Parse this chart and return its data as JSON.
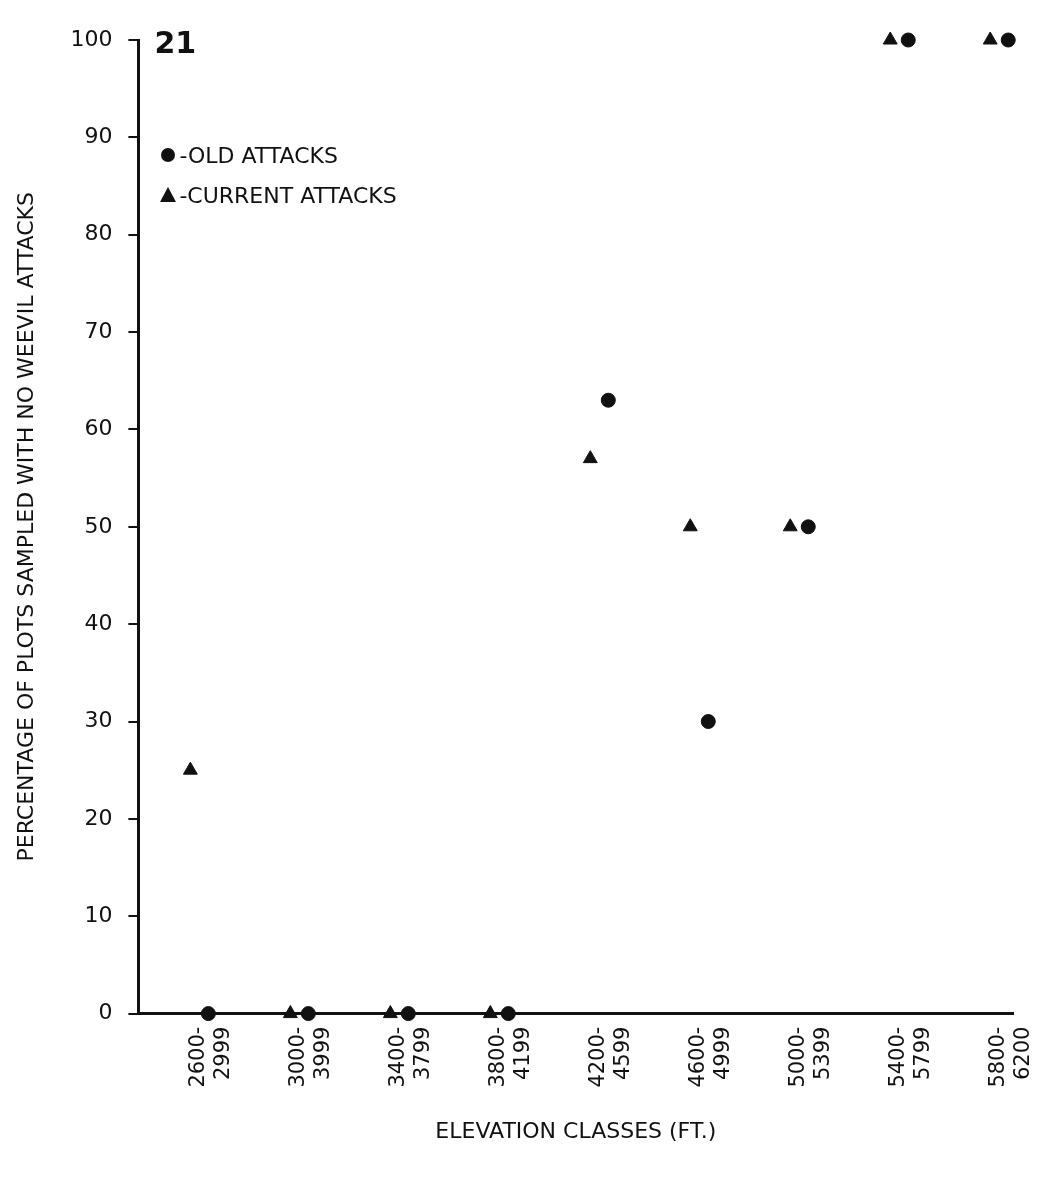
{
  "chart_data": {
    "type": "scatter",
    "xlabel": "ELEVATION CLASSES (FT.)",
    "ylabel": "PERCENTAGE OF PLOTS SAMPLED WITH NO WEEVIL ATTACKS",
    "annotations": [
      "21"
    ],
    "categories": [
      "2600-2999",
      "3000-3999",
      "3400-3799",
      "3800-4199",
      "4200-4599",
      "4600-4999",
      "5000-5399",
      "5400-5799",
      "5800-6200"
    ],
    "series": [
      {
        "name": "-OLD ATTACKS",
        "color": "#111111",
        "marker": "circle",
        "values": [
          0,
          0,
          0,
          0,
          63,
          30,
          50,
          100,
          100
        ]
      },
      {
        "name": "-CURRENT ATTACKS",
        "color": "#111111",
        "marker": "triangle",
        "values": [
          25,
          0,
          0,
          0,
          57,
          50,
          50,
          100,
          100
        ]
      }
    ],
    "ylim": [
      0,
      100
    ],
    "yticks": [
      0,
      10,
      20,
      30,
      40,
      50,
      60,
      70,
      80,
      90,
      100
    ],
    "grid": false,
    "legend": "top left"
  }
}
